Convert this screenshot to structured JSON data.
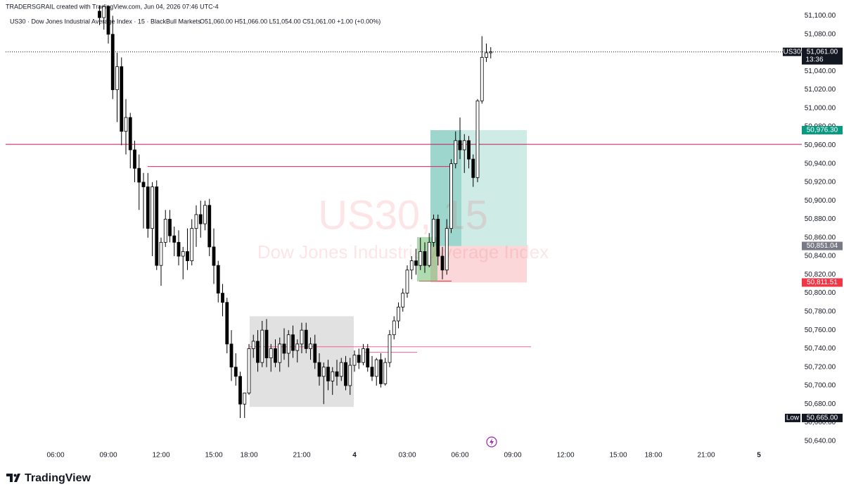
{
  "chart_data": {
    "type": "candlestick",
    "credit": "TRADERSGRAIL created with TradingView.com, Jun 04, 2026 07:46 UTC-4",
    "title": "US30 · Dow Jones Industrial Average Index · 15 · BlackBull Markets",
    "ohlc_text": "O51,060.00 H51,066.00 L51,054.00 C51,061.00 +1.00 (+0.00%)",
    "watermark": [
      "US30, 15",
      "Dow Jones Industrial Average Index"
    ],
    "logo": "TradingView",
    "symbol_tag": "US30",
    "countdown": "13:36",
    "low_tag": "Low",
    "up_color": "#ffffff",
    "down_color": "#000000",
    "grid": false,
    "ylim": [
      50633,
      51111
    ],
    "yticks": [
      {
        "value": 50640,
        "label": "50,640.00"
      },
      {
        "value": 50660,
        "label": "50,660.00"
      },
      {
        "value": 50680,
        "label": "50,680.00"
      },
      {
        "value": 50700,
        "label": "50,700.00"
      },
      {
        "value": 50720,
        "label": "50,720.00"
      },
      {
        "value": 50740,
        "label": "50,740.00"
      },
      {
        "value": 50760,
        "label": "50,760.00"
      },
      {
        "value": 50780,
        "label": "50,780.00"
      },
      {
        "value": 50800,
        "label": "50,800.00"
      },
      {
        "value": 50820,
        "label": "50,820.00"
      },
      {
        "value": 50840,
        "label": "50,840.00"
      },
      {
        "value": 50860,
        "label": "50,860.00"
      },
      {
        "value": 50880,
        "label": "50,880.00"
      },
      {
        "value": 50900,
        "label": "50,900.00"
      },
      {
        "value": 50920,
        "label": "50,920.00"
      },
      {
        "value": 50940,
        "label": "50,940.00"
      },
      {
        "value": 50960,
        "label": "50,960.00"
      },
      {
        "value": 50980,
        "label": "50,980.00"
      },
      {
        "value": 51000,
        "label": "51,000.00"
      },
      {
        "value": 51020,
        "label": "51,020.00"
      },
      {
        "value": 51040,
        "label": "51,040.00"
      },
      {
        "value": 51060,
        "label": "51,060.00"
      },
      {
        "value": 51080,
        "label": "51,080.00"
      },
      {
        "value": 51100,
        "label": "51,100.00"
      }
    ],
    "xticks": [
      "06:00",
      "09:00",
      "12:00",
      "15:00",
      "18:00",
      "21:00",
      {
        "value": "00:00",
        "label": "4"
      },
      "03:00",
      "06:00",
      "09:00",
      "12:00",
      "15:00",
      "18:00",
      "21:00",
      {
        "value": "00:00",
        "label": "5"
      }
    ],
    "x": [
      "08:30",
      "08:45",
      "09:00",
      "09:15",
      "09:30",
      "09:45",
      "10:00",
      "10:15",
      "10:30",
      "10:45",
      "11:00",
      "11:15",
      "11:30",
      "11:45",
      "12:00",
      "12:15",
      "12:30",
      "12:45",
      "13:00",
      "13:15",
      "13:30",
      "13:45",
      "14:00",
      "14:15",
      "14:30",
      "14:45",
      "15:00",
      "15:15",
      "15:30",
      "15:45",
      "16:00",
      "16:15",
      "16:30",
      "16:45",
      "18:00",
      "18:15",
      "18:30",
      "18:45",
      "19:00",
      "19:15",
      "19:30",
      "19:45",
      "20:00",
      "20:15",
      "20:30",
      "20:45",
      "21:00",
      "21:15",
      "21:30",
      "21:45",
      "22:00",
      "22:15",
      "22:30",
      "22:45",
      "23:00",
      "23:15",
      "23:30",
      "23:45",
      "00:00",
      "00:15",
      "00:30",
      "00:45",
      "01:00",
      "01:15",
      "01:30",
      "01:45",
      "02:00",
      "02:15",
      "02:30",
      "02:45",
      "03:00",
      "03:15",
      "03:30",
      "03:45",
      "04:00",
      "04:15",
      "04:30",
      "04:45",
      "05:00",
      "05:15",
      "05:30",
      "05:45",
      "06:00",
      "06:15",
      "06:30",
      "06:45",
      "07:00",
      "07:15",
      "07:30",
      "07:45"
    ],
    "open": [
      51105,
      51098,
      51110,
      51080,
      51020,
      51045,
      50975,
      50990,
      50955,
      50935,
      50920,
      50915,
      50870,
      50915,
      50830,
      50855,
      50880,
      50862,
      50855,
      50840,
      50845,
      50835,
      50870,
      50885,
      50875,
      50895,
      50850,
      50830,
      50800,
      50790,
      50745,
      50720,
      50710,
      50680,
      50692,
      50740,
      50748,
      50725,
      50760,
      50730,
      50740,
      50725,
      50745,
      50735,
      50755,
      50738,
      50745,
      50760,
      50740,
      50745,
      50725,
      50710,
      50720,
      50705,
      50715,
      50710,
      50725,
      50700,
      50722,
      50733,
      50725,
      50740,
      50720,
      50710,
      50728,
      50702,
      50725,
      50755,
      50770,
      50785,
      50800,
      50825,
      50835,
      50830,
      50845,
      50830,
      50855,
      50880,
      50840,
      50825,
      50870,
      50940,
      50965,
      50955,
      50965,
      50945,
      50925,
      51008,
      51055,
      51060
    ],
    "high": [
      51125,
      51120,
      51118,
      51100,
      51060,
      51055,
      51010,
      50995,
      50965,
      50950,
      50930,
      50930,
      50920,
      50922,
      50860,
      50890,
      50890,
      50872,
      50868,
      50850,
      50870,
      50880,
      50895,
      50900,
      50900,
      50902,
      50870,
      50835,
      50810,
      50795,
      50760,
      50735,
      50715,
      50690,
      50745,
      50755,
      50760,
      50770,
      50772,
      50745,
      50750,
      50752,
      50762,
      50760,
      50765,
      50750,
      50768,
      50768,
      50752,
      50755,
      50735,
      50725,
      50728,
      50720,
      50728,
      50730,
      50732,
      50730,
      50738,
      50740,
      50745,
      50745,
      50732,
      50730,
      50735,
      50730,
      50760,
      50775,
      50790,
      50805,
      50830,
      50840,
      50848,
      50860,
      50855,
      50865,
      50885,
      50885,
      50850,
      50880,
      50945,
      50975,
      50990,
      50972,
      50970,
      50950,
      51010,
      51078,
      51070,
      51066
    ],
    "low": [
      51090,
      51085,
      51070,
      51010,
      50985,
      50960,
      50950,
      50935,
      50920,
      50890,
      50870,
      50860,
      50840,
      50825,
      50808,
      50850,
      50855,
      50840,
      50830,
      50815,
      50825,
      50830,
      50850,
      50860,
      50868,
      50840,
      50810,
      50790,
      50775,
      50735,
      50705,
      50700,
      50665,
      50665,
      50690,
      50730,
      50715,
      50720,
      50720,
      50715,
      50720,
      50715,
      50728,
      50720,
      50730,
      50725,
      50735,
      50735,
      50728,
      50718,
      50700,
      50680,
      50695,
      50690,
      50700,
      50705,
      50695,
      50690,
      50715,
      50718,
      50722,
      50715,
      50705,
      50700,
      50698,
      50700,
      50720,
      50750,
      50762,
      50780,
      50795,
      50815,
      50820,
      50825,
      50822,
      50828,
      50850,
      50830,
      50815,
      50820,
      50865,
      50935,
      50945,
      50930,
      50935,
      50915,
      50920,
      51005,
      51050,
      51054
    ],
    "close": [
      51098,
      51110,
      51080,
      51020,
      51045,
      50975,
      50990,
      50955,
      50935,
      50920,
      50915,
      50870,
      50915,
      50830,
      50855,
      50880,
      50862,
      50855,
      50840,
      50845,
      50835,
      50870,
      50885,
      50875,
      50895,
      50850,
      50830,
      50800,
      50790,
      50745,
      50720,
      50710,
      50680,
      50692,
      50740,
      50748,
      50725,
      50760,
      50730,
      50740,
      50725,
      50745,
      50735,
      50755,
      50738,
      50745,
      50760,
      50740,
      50745,
      50725,
      50710,
      50720,
      50705,
      50715,
      50710,
      50725,
      50700,
      50722,
      50733,
      50725,
      50740,
      50720,
      50710,
      50728,
      50702,
      50725,
      50755,
      50770,
      50785,
      50800,
      50825,
      50835,
      50830,
      50845,
      50830,
      50855,
      50880,
      50840,
      50825,
      50870,
      50940,
      50965,
      50955,
      50965,
      50945,
      50925,
      51008,
      51055,
      51060,
      51061
    ],
    "levels": [
      {
        "price": 50961,
        "color": "#c2185b"
      },
      {
        "price": 50937,
        "color": "#e91e63"
      },
      {
        "price": 50742,
        "color": "#f06292"
      },
      {
        "price": 50736,
        "color": "#f06292"
      },
      {
        "price": 50813,
        "color": "#f23645"
      }
    ],
    "range_box": {
      "top": 50775,
      "bottom": 50677,
      "color": "#dcdcdc"
    },
    "position": {
      "target": {
        "value": 50976.3,
        "label": "50,976.30",
        "color": "#089981"
      },
      "entry": {
        "value": 50851.04,
        "label": "50,851.04",
        "color": "#787b86"
      },
      "stop": {
        "value": 50811.51,
        "label": "50,811.51",
        "color": "#f23645"
      }
    },
    "last_price": {
      "value": 51061,
      "label": "51,061.00"
    },
    "low_price": {
      "value": 50665,
      "label": "50,665.00"
    }
  }
}
